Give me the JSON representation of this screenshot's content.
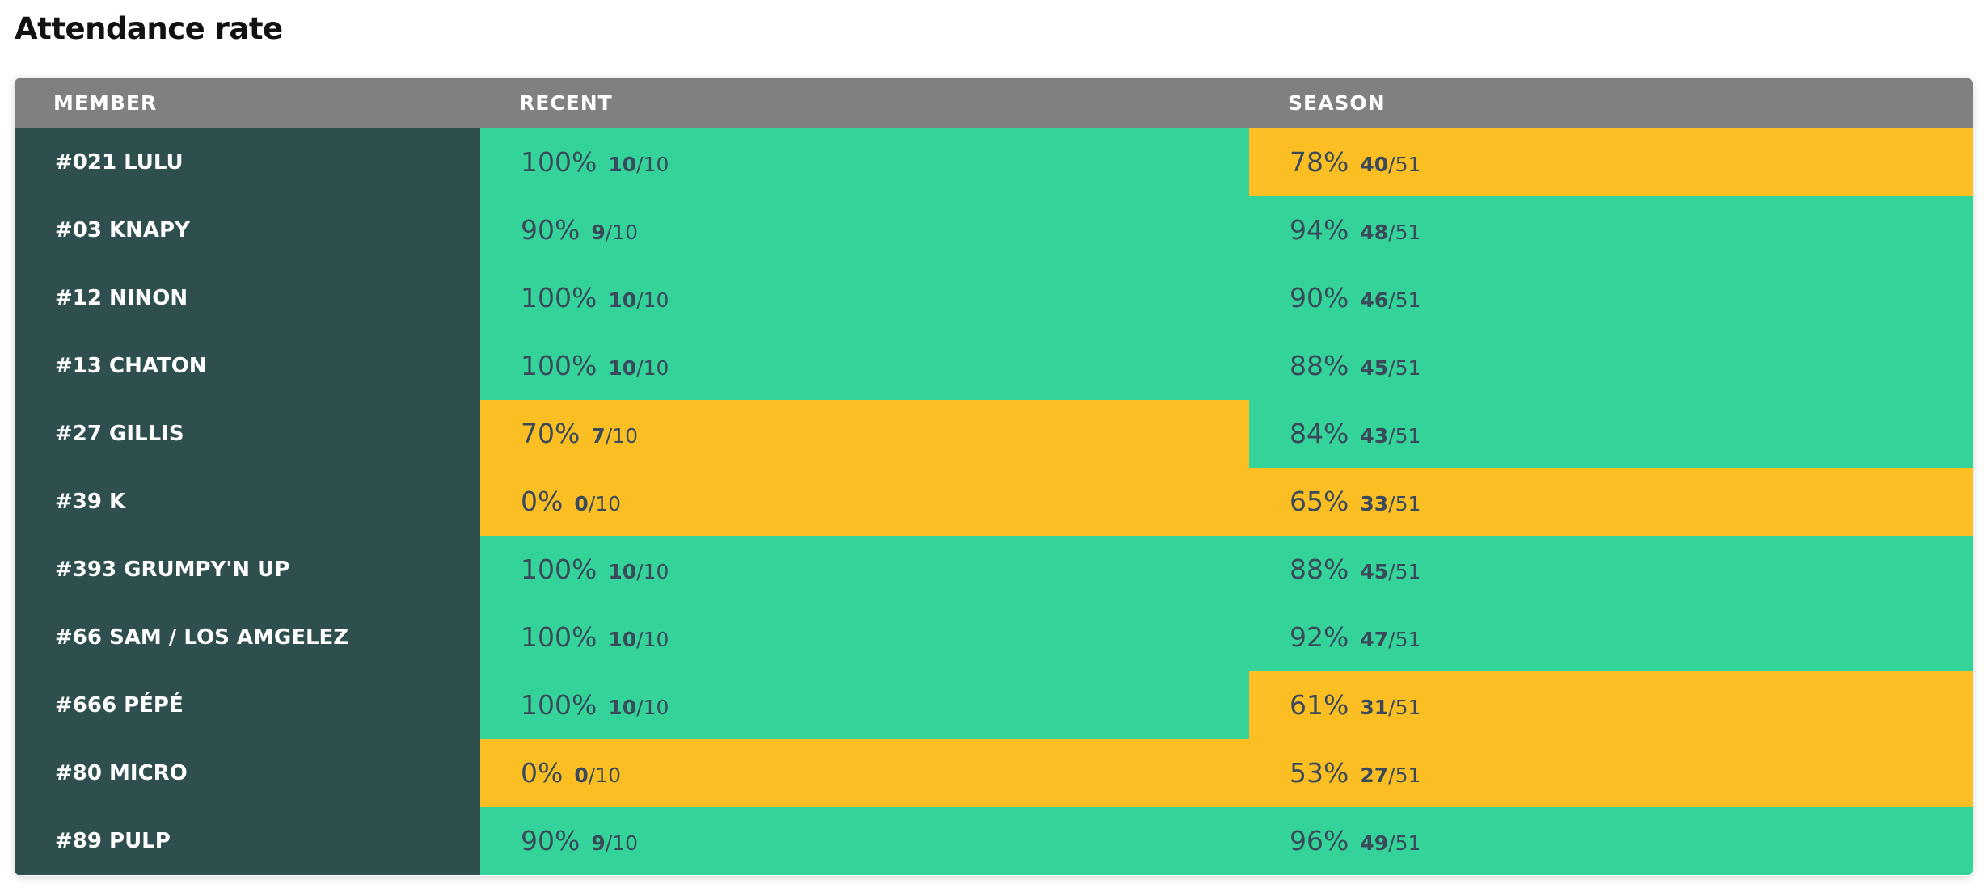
{
  "title": "Attendance rate",
  "colors": {
    "header_bg": "#808080",
    "member_bg": "#2f4f4f",
    "good": "#34d399",
    "warn": "#fbbf24",
    "text_dark": "#3a4a5a"
  },
  "table": {
    "columns": [
      "MEMBER",
      "RECENT",
      "SEASON"
    ],
    "rows": [
      {
        "member": "#021 LULU",
        "recent": {
          "pct": "100%",
          "count": "10",
          "total": "/10",
          "status": "good"
        },
        "season": {
          "pct": "78%",
          "count": "40",
          "total": "/51",
          "status": "warn"
        }
      },
      {
        "member": "#03 KNAPY",
        "recent": {
          "pct": "90%",
          "count": "9",
          "total": "/10",
          "status": "good"
        },
        "season": {
          "pct": "94%",
          "count": "48",
          "total": "/51",
          "status": "good"
        }
      },
      {
        "member": "#12 NINON",
        "recent": {
          "pct": "100%",
          "count": "10",
          "total": "/10",
          "status": "good"
        },
        "season": {
          "pct": "90%",
          "count": "46",
          "total": "/51",
          "status": "good"
        }
      },
      {
        "member": "#13 CHATON",
        "recent": {
          "pct": "100%",
          "count": "10",
          "total": "/10",
          "status": "good"
        },
        "season": {
          "pct": "88%",
          "count": "45",
          "total": "/51",
          "status": "good"
        }
      },
      {
        "member": "#27 GILLIS",
        "recent": {
          "pct": "70%",
          "count": "7",
          "total": "/10",
          "status": "warn"
        },
        "season": {
          "pct": "84%",
          "count": "43",
          "total": "/51",
          "status": "good"
        }
      },
      {
        "member": "#39 K",
        "recent": {
          "pct": "0%",
          "count": "0",
          "total": "/10",
          "status": "warn"
        },
        "season": {
          "pct": "65%",
          "count": "33",
          "total": "/51",
          "status": "warn"
        }
      },
      {
        "member": "#393 GRUMPY'N UP",
        "recent": {
          "pct": "100%",
          "count": "10",
          "total": "/10",
          "status": "good"
        },
        "season": {
          "pct": "88%",
          "count": "45",
          "total": "/51",
          "status": "good"
        }
      },
      {
        "member": "#66 SAM / LOS AMGELEZ",
        "recent": {
          "pct": "100%",
          "count": "10",
          "total": "/10",
          "status": "good"
        },
        "season": {
          "pct": "92%",
          "count": "47",
          "total": "/51",
          "status": "good"
        }
      },
      {
        "member": "#666 PÉPÉ",
        "recent": {
          "pct": "100%",
          "count": "10",
          "total": "/10",
          "status": "good"
        },
        "season": {
          "pct": "61%",
          "count": "31",
          "total": "/51",
          "status": "warn"
        }
      },
      {
        "member": "#80 MICRO",
        "recent": {
          "pct": "0%",
          "count": "0",
          "total": "/10",
          "status": "warn"
        },
        "season": {
          "pct": "53%",
          "count": "27",
          "total": "/51",
          "status": "warn"
        }
      },
      {
        "member": "#89 PULP",
        "recent": {
          "pct": "90%",
          "count": "9",
          "total": "/10",
          "status": "good"
        },
        "season": {
          "pct": "96%",
          "count": "49",
          "total": "/51",
          "status": "good"
        }
      }
    ]
  }
}
